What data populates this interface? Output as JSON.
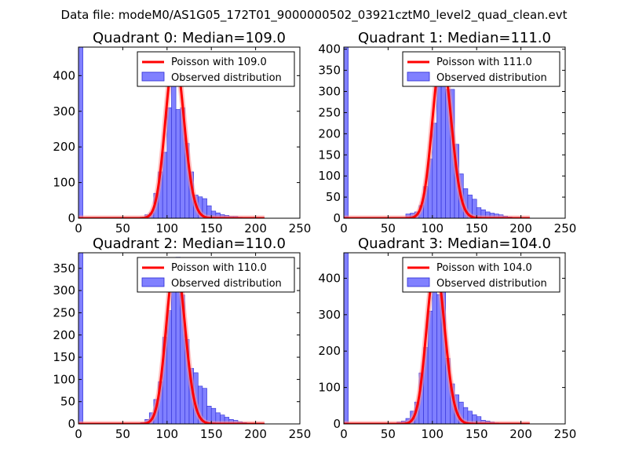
{
  "figure": {
    "suptitle": "Data file: modeM0/AS1G05_172T01_9000000502_03921cztM0_level2_quad_clean.evt",
    "background": "#ffffff"
  },
  "colors": {
    "histogram_fill": "#8080ff",
    "histogram_edge": "#2b2bd6",
    "poisson_line": "#ff0000",
    "poisson_glow": "#ff9090"
  },
  "chart_data": [
    {
      "type": "bar",
      "title": "Quadrant 0: Median=109.0",
      "xlim": [
        0,
        250
      ],
      "ylim": [
        0,
        480
      ],
      "xticks": [
        0,
        50,
        100,
        150,
        200,
        250
      ],
      "yticks": [
        0,
        100,
        200,
        300,
        400
      ],
      "bin_width": 5,
      "legend": {
        "position": "top-right",
        "line_label": "Poisson with 109.0",
        "bar_label": "Observed distribution"
      },
      "histogram": [
        {
          "x": 0,
          "count": 480
        },
        {
          "x": 70,
          "count": 3
        },
        {
          "x": 75,
          "count": 10
        },
        {
          "x": 80,
          "count": 15
        },
        {
          "x": 85,
          "count": 70
        },
        {
          "x": 90,
          "count": 130
        },
        {
          "x": 95,
          "count": 185
        },
        {
          "x": 100,
          "count": 310
        },
        {
          "x": 105,
          "count": 390
        },
        {
          "x": 110,
          "count": 305
        },
        {
          "x": 115,
          "count": 310
        },
        {
          "x": 120,
          "count": 210
        },
        {
          "x": 125,
          "count": 130
        },
        {
          "x": 130,
          "count": 65
        },
        {
          "x": 135,
          "count": 60
        },
        {
          "x": 140,
          "count": 55
        },
        {
          "x": 145,
          "count": 35
        },
        {
          "x": 150,
          "count": 20
        },
        {
          "x": 155,
          "count": 15
        },
        {
          "x": 160,
          "count": 10
        },
        {
          "x": 165,
          "count": 8
        },
        {
          "x": 170,
          "count": 5
        },
        {
          "x": 175,
          "count": 5
        },
        {
          "x": 180,
          "count": 3
        },
        {
          "x": 185,
          "count": 2
        },
        {
          "x": 190,
          "count": 2
        },
        {
          "x": 195,
          "count": 1
        },
        {
          "x": 200,
          "count": 1
        },
        {
          "x": 205,
          "count": 1
        }
      ],
      "poisson": {
        "mean": 109.0,
        "peak": 458,
        "x_range": [
          0,
          210
        ]
      }
    },
    {
      "type": "bar",
      "title": "Quadrant 1: Median=111.0",
      "xlim": [
        0,
        250
      ],
      "ylim": [
        0,
        405
      ],
      "xticks": [
        0,
        50,
        100,
        150,
        200,
        250
      ],
      "yticks": [
        0,
        50,
        100,
        150,
        200,
        250,
        300,
        350,
        400
      ],
      "bin_width": 5,
      "legend": {
        "position": "top-right",
        "line_label": "Poisson with 111.0",
        "bar_label": "Observed distribution"
      },
      "histogram": [
        {
          "x": 0,
          "count": 405
        },
        {
          "x": 70,
          "count": 10
        },
        {
          "x": 75,
          "count": 12
        },
        {
          "x": 80,
          "count": 15
        },
        {
          "x": 85,
          "count": 30
        },
        {
          "x": 90,
          "count": 75
        },
        {
          "x": 95,
          "count": 140
        },
        {
          "x": 100,
          "count": 225
        },
        {
          "x": 105,
          "count": 320
        },
        {
          "x": 110,
          "count": 355
        },
        {
          "x": 115,
          "count": 305
        },
        {
          "x": 120,
          "count": 305
        },
        {
          "x": 125,
          "count": 175
        },
        {
          "x": 130,
          "count": 105
        },
        {
          "x": 135,
          "count": 70
        },
        {
          "x": 140,
          "count": 55
        },
        {
          "x": 145,
          "count": 45
        },
        {
          "x": 150,
          "count": 25
        },
        {
          "x": 155,
          "count": 20
        },
        {
          "x": 160,
          "count": 15
        },
        {
          "x": 165,
          "count": 12
        },
        {
          "x": 170,
          "count": 10
        },
        {
          "x": 175,
          "count": 8
        },
        {
          "x": 180,
          "count": 5
        },
        {
          "x": 185,
          "count": 3
        },
        {
          "x": 190,
          "count": 2
        },
        {
          "x": 195,
          "count": 2
        },
        {
          "x": 200,
          "count": 1
        },
        {
          "x": 205,
          "count": 1
        }
      ],
      "poisson": {
        "mean": 111.0,
        "peak": 385,
        "x_range": [
          0,
          210
        ]
      }
    },
    {
      "type": "bar",
      "title": "Quadrant 2: Median=110.0",
      "xlim": [
        0,
        250
      ],
      "ylim": [
        0,
        385
      ],
      "xticks": [
        0,
        50,
        100,
        150,
        200,
        250
      ],
      "yticks": [
        0,
        50,
        100,
        150,
        200,
        250,
        300,
        350
      ],
      "bin_width": 5,
      "legend": {
        "position": "top-right",
        "line_label": "Poisson with 110.0",
        "bar_label": "Observed distribution"
      },
      "histogram": [
        {
          "x": 0,
          "count": 385
        },
        {
          "x": 70,
          "count": 3
        },
        {
          "x": 75,
          "count": 10
        },
        {
          "x": 80,
          "count": 25
        },
        {
          "x": 85,
          "count": 55
        },
        {
          "x": 90,
          "count": 95
        },
        {
          "x": 95,
          "count": 195
        },
        {
          "x": 100,
          "count": 255
        },
        {
          "x": 105,
          "count": 360
        },
        {
          "x": 110,
          "count": 375
        },
        {
          "x": 115,
          "count": 290
        },
        {
          "x": 120,
          "count": 190
        },
        {
          "x": 125,
          "count": 125
        },
        {
          "x": 130,
          "count": 115
        },
        {
          "x": 135,
          "count": 85
        },
        {
          "x": 140,
          "count": 80
        },
        {
          "x": 145,
          "count": 40
        },
        {
          "x": 150,
          "count": 35
        },
        {
          "x": 155,
          "count": 25
        },
        {
          "x": 160,
          "count": 20
        },
        {
          "x": 165,
          "count": 15
        },
        {
          "x": 170,
          "count": 10
        },
        {
          "x": 175,
          "count": 8
        },
        {
          "x": 180,
          "count": 5
        },
        {
          "x": 185,
          "count": 3
        },
        {
          "x": 190,
          "count": 2
        },
        {
          "x": 195,
          "count": 2
        },
        {
          "x": 200,
          "count": 1
        },
        {
          "x": 205,
          "count": 1
        }
      ],
      "poisson": {
        "mean": 110.0,
        "peak": 368,
        "x_range": [
          0,
          210
        ]
      }
    },
    {
      "type": "bar",
      "title": "Quadrant 3: Median=104.0",
      "xlim": [
        0,
        250
      ],
      "ylim": [
        0,
        470
      ],
      "xticks": [
        0,
        50,
        100,
        150,
        200,
        250
      ],
      "yticks": [
        0,
        100,
        200,
        300,
        400
      ],
      "bin_width": 5,
      "legend": {
        "position": "top-right",
        "line_label": "Poisson with 104.0",
        "bar_label": "Observed distribution"
      },
      "histogram": [
        {
          "x": 0,
          "count": 470
        },
        {
          "x": 60,
          "count": 5
        },
        {
          "x": 65,
          "count": 8
        },
        {
          "x": 70,
          "count": 15
        },
        {
          "x": 75,
          "count": 35
        },
        {
          "x": 80,
          "count": 60
        },
        {
          "x": 85,
          "count": 140
        },
        {
          "x": 90,
          "count": 210
        },
        {
          "x": 95,
          "count": 310
        },
        {
          "x": 100,
          "count": 440
        },
        {
          "x": 105,
          "count": 355
        },
        {
          "x": 110,
          "count": 365
        },
        {
          "x": 115,
          "count": 180
        },
        {
          "x": 120,
          "count": 110
        },
        {
          "x": 125,
          "count": 80
        },
        {
          "x": 130,
          "count": 60
        },
        {
          "x": 135,
          "count": 45
        },
        {
          "x": 140,
          "count": 35
        },
        {
          "x": 145,
          "count": 25
        },
        {
          "x": 150,
          "count": 20
        },
        {
          "x": 155,
          "count": 10
        },
        {
          "x": 160,
          "count": 8
        },
        {
          "x": 165,
          "count": 5
        },
        {
          "x": 170,
          "count": 3
        },
        {
          "x": 175,
          "count": 2
        },
        {
          "x": 180,
          "count": 1
        }
      ],
      "poisson": {
        "mean": 104.0,
        "peak": 435,
        "x_range": [
          0,
          210
        ]
      }
    }
  ]
}
